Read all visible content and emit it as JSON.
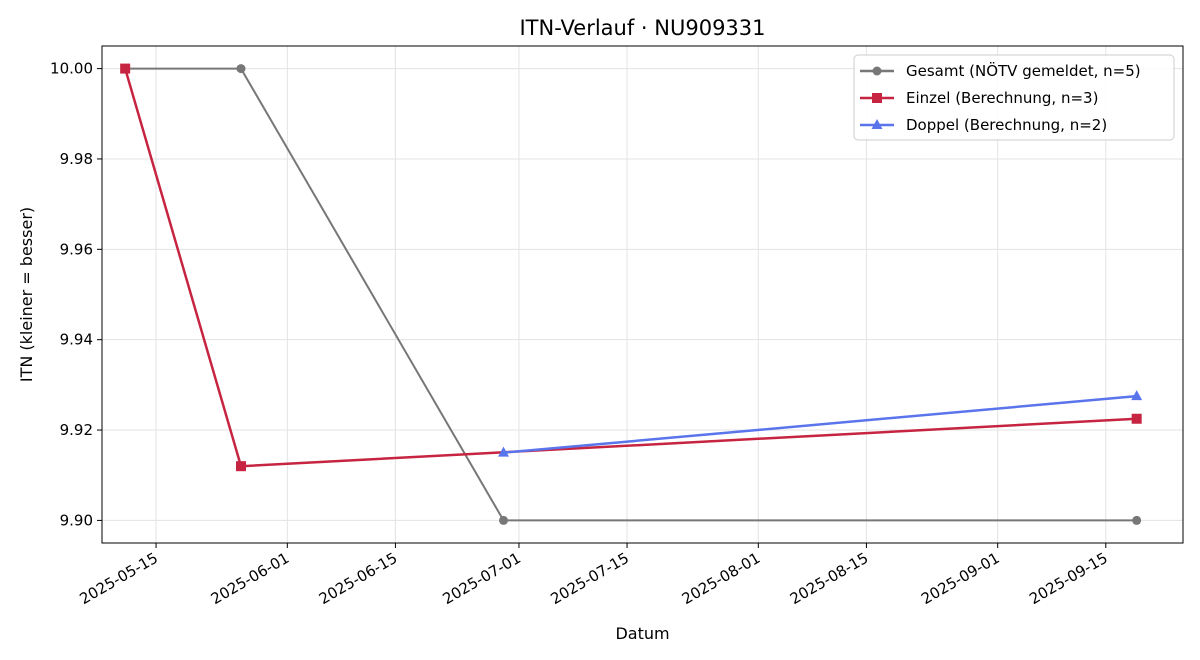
{
  "chart_data": {
    "type": "line",
    "title": "ITN-Verlauf · NU909331",
    "xlabel": "Datum",
    "ylabel": "ITN  (kleiner = besser)",
    "x_type": "date",
    "xlim": [
      "2025-05-08",
      "2025-09-25"
    ],
    "ylim": [
      9.895,
      10.005
    ],
    "x_ticks": [
      "2025-05-15",
      "2025-06-01",
      "2025-06-15",
      "2025-07-01",
      "2025-07-15",
      "2025-08-01",
      "2025-08-15",
      "2025-09-01",
      "2025-09-15"
    ],
    "y_ticks": [
      9.9,
      9.92,
      9.94,
      9.96,
      9.98,
      10.0
    ],
    "y_tick_labels": [
      "9.90",
      "9.92",
      "9.94",
      "9.96",
      "9.98",
      "10.00"
    ],
    "grid": true,
    "legend_position": "top-right",
    "series": [
      {
        "name": "Gesamt (NÖTV gemeldet, n=5)",
        "color": "#777777",
        "marker": "circle",
        "points": [
          {
            "x": "2025-05-11",
            "y": 10.0
          },
          {
            "x": "2025-05-26",
            "y": 10.0
          },
          {
            "x": "2025-06-29",
            "y": 9.9
          },
          {
            "x": "2025-09-19",
            "y": 9.9
          }
        ]
      },
      {
        "name": "Einzel (Berechnung, n=3)",
        "color": "#c62441",
        "marker": "square",
        "points": [
          {
            "x": "2025-05-11",
            "y": 10.0
          },
          {
            "x": "2025-05-26",
            "y": 9.912
          },
          {
            "x": "2025-09-19",
            "y": 9.9225
          }
        ]
      },
      {
        "name": "Doppel (Berechnung, n=2)",
        "color": "#5a74ec",
        "marker": "triangle",
        "points": [
          {
            "x": "2025-06-29",
            "y": 9.915
          },
          {
            "x": "2025-09-19",
            "y": 9.9275
          }
        ]
      }
    ]
  }
}
